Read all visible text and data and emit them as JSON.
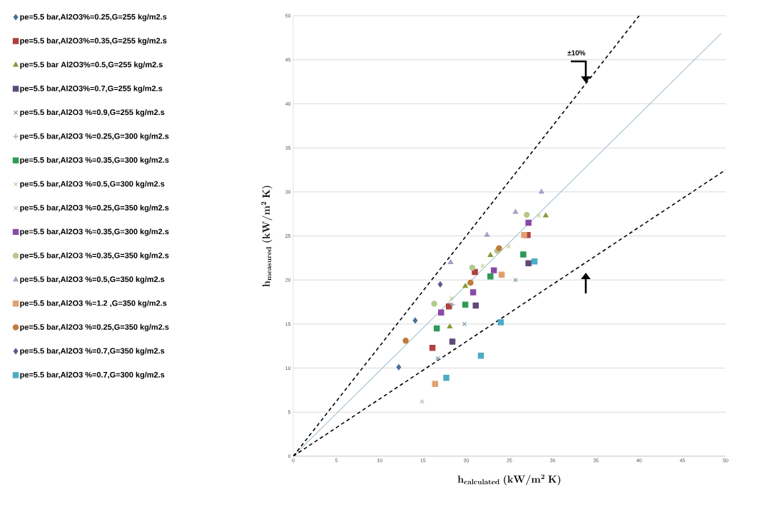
{
  "chart_data": {
    "type": "scatter",
    "xlabel": "\\mathbf{h_{calculated}~(kW/m^{2}~K)}",
    "ylabel": "\\mathbf{h_{measured}~(kW/m^{2}~K)}",
    "xlim": [
      0,
      50
    ],
    "ylim": [
      0,
      50
    ],
    "xticks": [
      0,
      5,
      10,
      15,
      20,
      25,
      30,
      35,
      40,
      45,
      50
    ],
    "yticks": [
      0,
      5,
      10,
      15,
      20,
      25,
      30,
      35,
      40,
      45,
      50
    ],
    "grid": "y",
    "legend": "left",
    "annotations": [
      "±10%"
    ],
    "series": [
      {
        "name": "pe=5.5 bar,Al2O3%=0.25,G=255 kg/m2.s",
        "color": "#4a6e9a",
        "marker": "diamond",
        "x": [
          12.2,
          14.1
        ],
        "values": [
          10.1,
          15.4
        ]
      },
      {
        "name": "pe=5.5 bar,Al2O3%=0.35,G=255 kg/m2.s",
        "color": "#b04040",
        "marker": "square",
        "x": [
          16.1,
          18.0,
          21.0,
          27.1
        ],
        "values": [
          12.3,
          17.0,
          20.9,
          25.1
        ]
      },
      {
        "name": "pe=5.5 bar Al2O3%=0.5,G=255 kg/m2.s",
        "color": "#8a9a3a",
        "marker": "triangle",
        "x": [
          18.1,
          19.9,
          22.8,
          29.2
        ],
        "values": [
          14.7,
          19.3,
          22.8,
          27.3
        ]
      },
      {
        "name": "pe=5.5 bar,Al2O3%=0.7,G=255 kg/m2.s",
        "color": "#604a7a",
        "marker": "square",
        "x": [
          18.4,
          21.1,
          27.2
        ],
        "values": [
          13.0,
          17.1,
          21.9
        ]
      },
      {
        "name": "pe=5.5 bar,Al2O3 %=0.9,G=255 kg/m2.s",
        "color": "#7aa0b0",
        "marker": "cross",
        "x": [
          16.7,
          19.8,
          25.7
        ],
        "values": [
          11.1,
          15.0,
          20.0
        ]
      },
      {
        "name": "pe=5.5 bar,Al2O3 %=0.25,G=300 kg/m2.s",
        "color": "#a0a8c0",
        "marker": "plus",
        "x": [
          18.4
        ],
        "values": [
          17.2
        ]
      },
      {
        "name": "pe=5.5 bar,Al2O3 %=0.35,G=300 kg/m2.s",
        "color": "#2e9a5a",
        "marker": "square",
        "x": [
          16.6,
          19.9,
          22.8,
          26.6
        ],
        "values": [
          14.5,
          17.2,
          20.4,
          22.9
        ]
      },
      {
        "name": "pe=5.5 bar,Al2O3 %=0.5,G=300 kg/m2.s",
        "color": "#c8d090",
        "marker": "cross",
        "x": [
          18.3,
          21.9,
          24.9,
          28.4
        ],
        "values": [
          17.9,
          21.6,
          23.8,
          27.3
        ]
      },
      {
        "name": "pe=5.5 bar,Al2O3 %=0.25,G=350 kg/m2.s",
        "color": "#b8c0d0",
        "marker": "cross",
        "x": [
          14.9
        ],
        "values": [
          6.2
        ]
      },
      {
        "name": "pe=5.5 bar,Al2O3 %=0.35,G=300 kg/m2.s",
        "color": "#8a4aa8",
        "marker": "square",
        "x": [
          17.1,
          20.8,
          23.2,
          27.2
        ],
        "values": [
          16.3,
          18.6,
          21.1,
          26.5
        ]
      },
      {
        "name": "pe=5.5 bar,Al2O3 %=0.35,G=350 kg/m2.s",
        "color": "#b5c98a",
        "marker": "circle",
        "x": [
          16.3,
          20.7,
          23.6,
          27.0
        ],
        "values": [
          17.3,
          21.4,
          23.3,
          27.4
        ]
      },
      {
        "name": "pe=5.5 bar,Al2O3 %=0.5,G=350 kg/m2.s",
        "color": "#a5a0c8",
        "marker": "triangle",
        "x": [
          18.2,
          22.4,
          25.7,
          28.7
        ],
        "values": [
          22.0,
          25.1,
          27.7,
          30.0
        ]
      },
      {
        "name": "pe=5.5 bar,Al2O3 %=1.2 ,G=350 kg/m2.s",
        "color": "#e0a070",
        "marker": "square",
        "x": [
          16.4,
          24.1,
          26.7
        ],
        "values": [
          8.2,
          20.6,
          25.1
        ]
      },
      {
        "name": "pe=5.5 bar,Al2O3 %=0.25,G=350 kg/m2.s",
        "color": "#c07a3a",
        "marker": "circle",
        "x": [
          13.0,
          20.5,
          23.8
        ],
        "values": [
          13.1,
          19.7,
          23.6
        ]
      },
      {
        "name": "pe=5.5 bar,Al2O3 %=0.7,G=350 kg/m2.s",
        "color": "#5a5a8a",
        "marker": "diamond",
        "x": [
          17.0
        ],
        "values": [
          19.5
        ]
      },
      {
        "name": "pe=5.5 bar,Al2O3 %=0.7,G=300 kg/m2.s",
        "color": "#4bacc6",
        "marker": "square",
        "x": [
          17.7,
          21.7,
          24.0,
          27.9
        ],
        "values": [
          8.9,
          11.4,
          15.2,
          22.1
        ]
      },
      {
        "type": "line",
        "color": "#a6bfcf",
        "line_style": "solid",
        "x": [
          0,
          49.5
        ],
        "values": [
          0,
          48
        ]
      },
      {
        "type": "line",
        "color": "#000000",
        "line_style": "dashed",
        "x": [
          0,
          40
        ],
        "values": [
          0,
          50
        ]
      },
      {
        "type": "line",
        "color": "#000000",
        "line_style": "dashed",
        "x": [
          0,
          50
        ],
        "values": [
          0,
          32.5
        ]
      }
    ]
  }
}
